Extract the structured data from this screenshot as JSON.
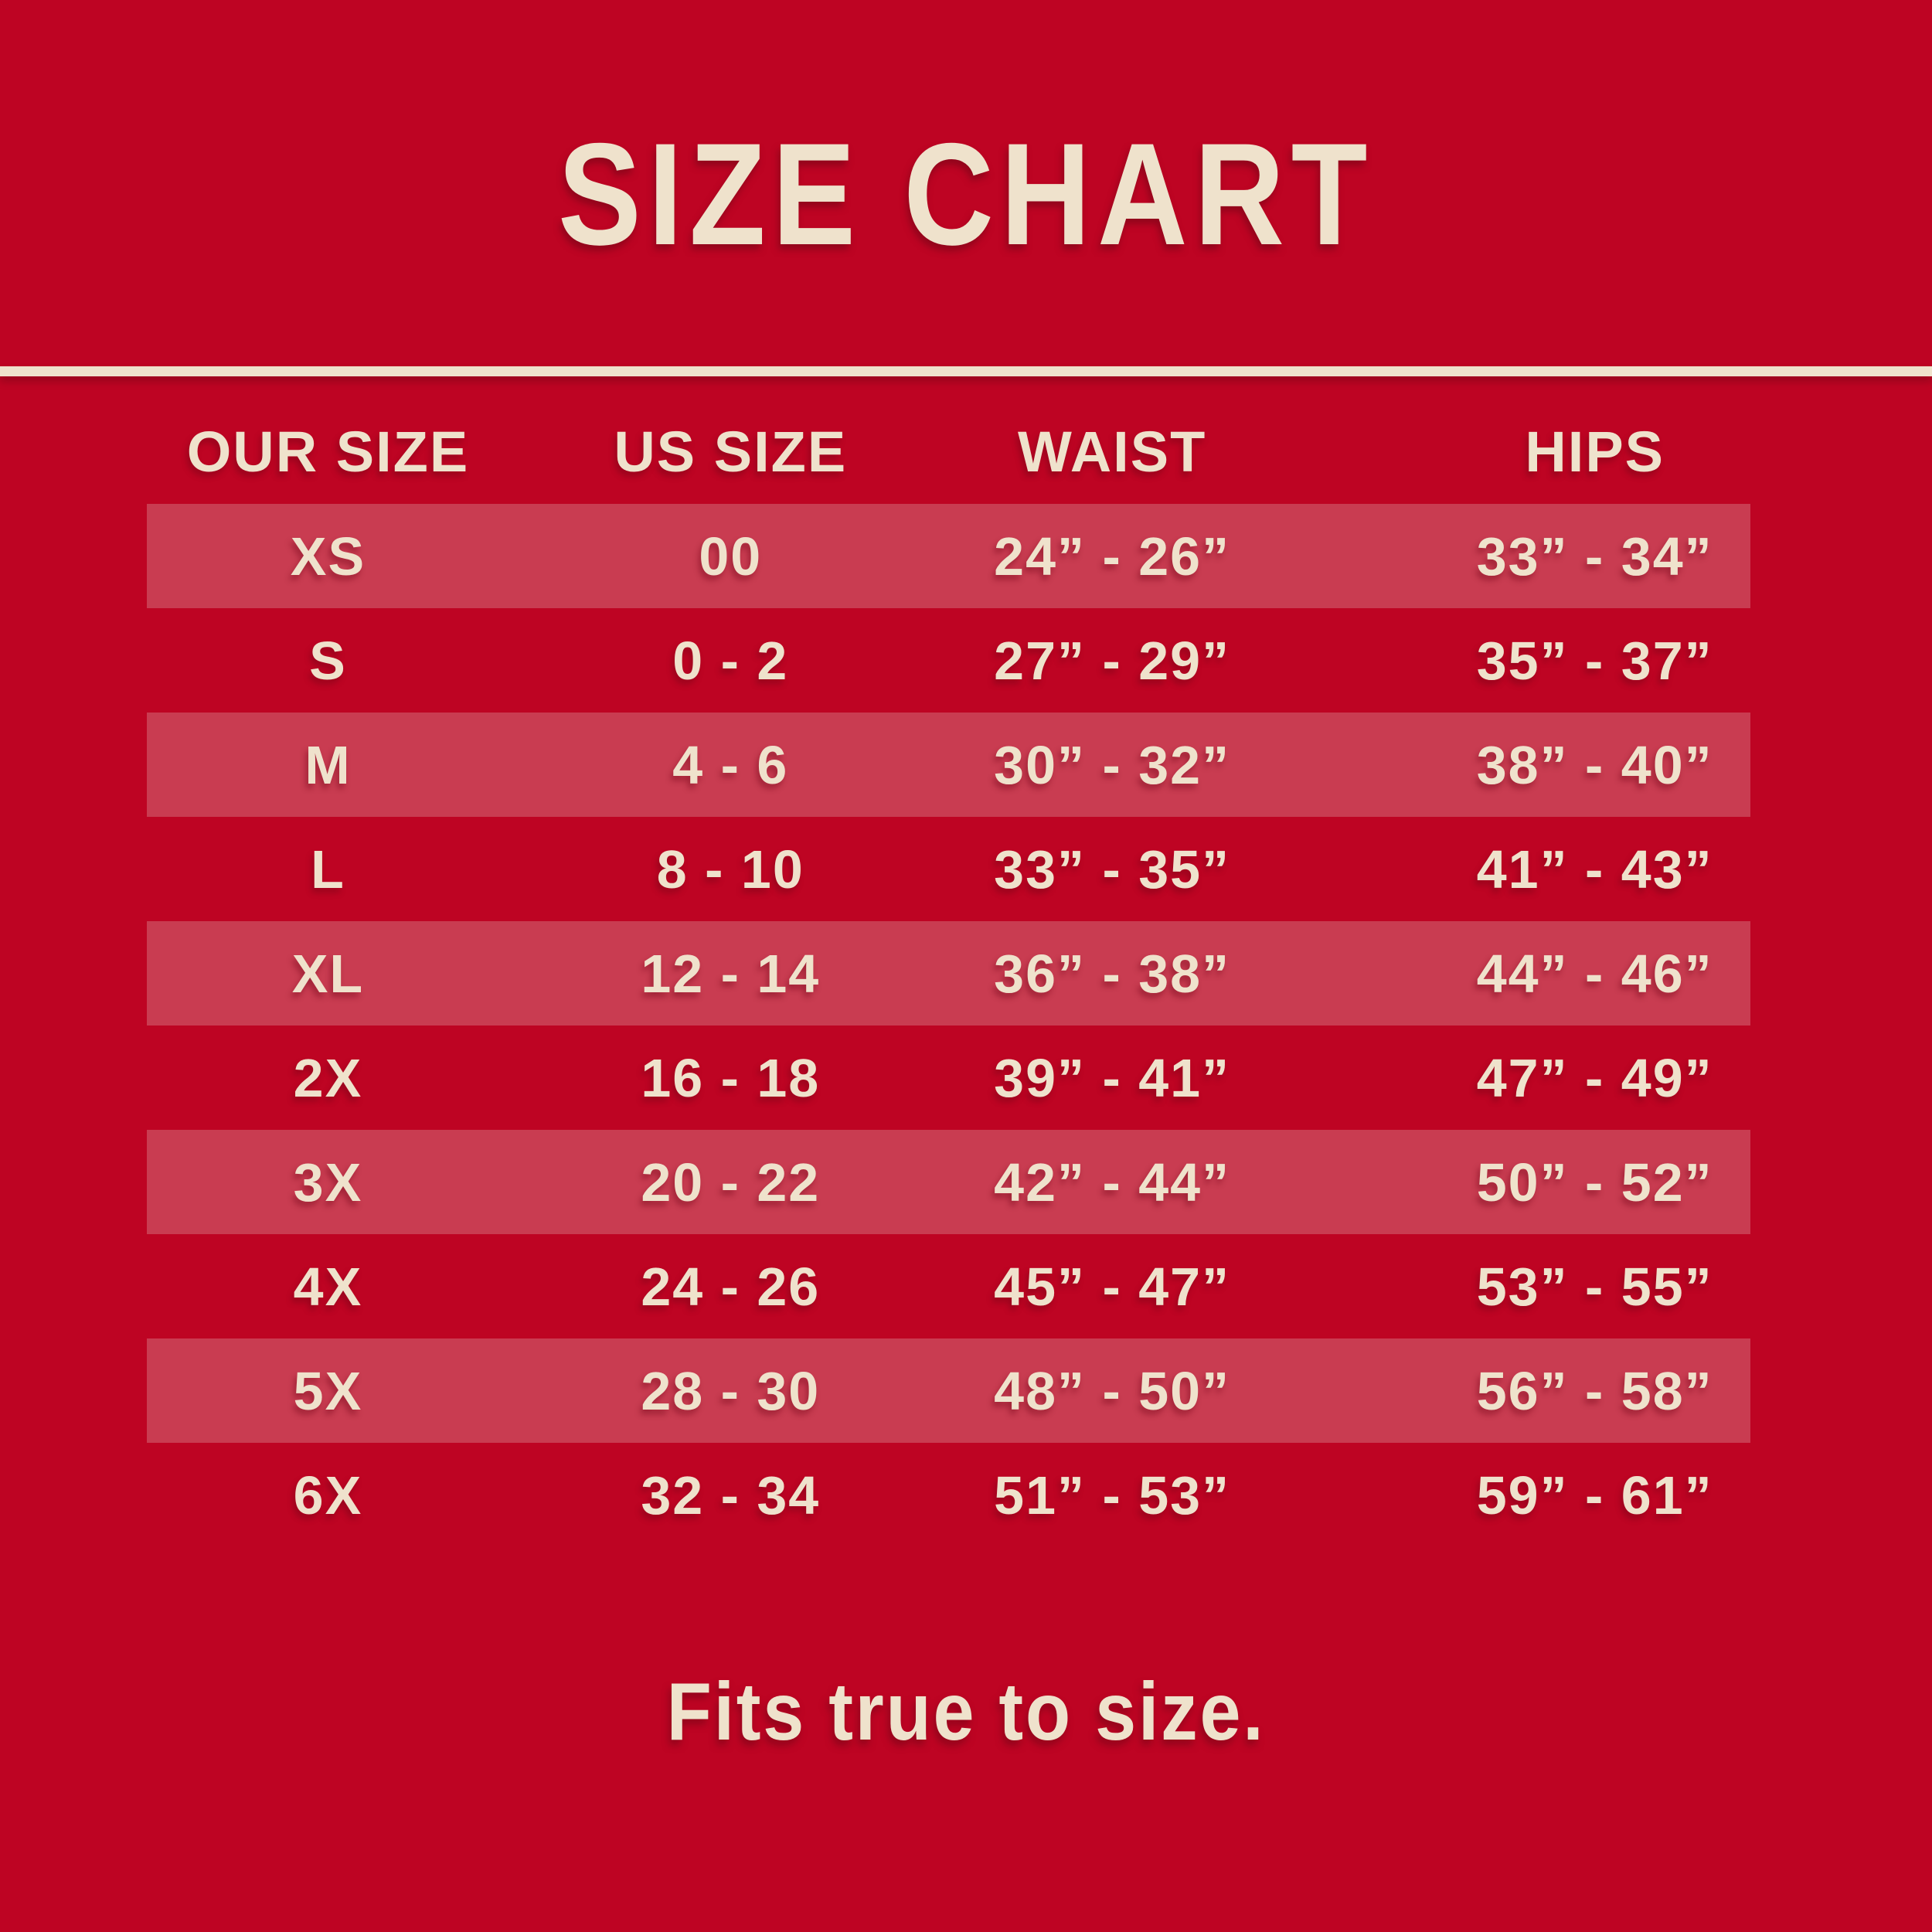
{
  "colors": {
    "background": "#be0423",
    "stripe": "#c93c51",
    "text": "#efe2cc"
  },
  "title": "SIZE CHART",
  "footer_note": "Fits true to size.",
  "table": {
    "headers": [
      "OUR SIZE",
      "US SIZE",
      "WAIST",
      "HIPS"
    ],
    "rows": [
      {
        "our_size": "XS",
        "us_size": "00",
        "waist": "24” - 26”",
        "hips": "33” - 34”",
        "striped": true
      },
      {
        "our_size": "S",
        "us_size": "0 - 2",
        "waist": "27” - 29”",
        "hips": "35” - 37”",
        "striped": false
      },
      {
        "our_size": "M",
        "us_size": "4 - 6",
        "waist": "30” - 32”",
        "hips": "38” - 40”",
        "striped": true
      },
      {
        "our_size": "L",
        "us_size": "8 - 10",
        "waist": "33” - 35”",
        "hips": "41” - 43”",
        "striped": false
      },
      {
        "our_size": "XL",
        "us_size": "12 - 14",
        "waist": "36” - 38”",
        "hips": "44” - 46”",
        "striped": true
      },
      {
        "our_size": "2X",
        "us_size": "16 - 18",
        "waist": "39” - 41”",
        "hips": "47” - 49”",
        "striped": false
      },
      {
        "our_size": "3X",
        "us_size": "20 - 22",
        "waist": "42” - 44”",
        "hips": "50” - 52”",
        "striped": true
      },
      {
        "our_size": "4X",
        "us_size": "24 - 26",
        "waist": "45” - 47”",
        "hips": "53” - 55”",
        "striped": false
      },
      {
        "our_size": "5X",
        "us_size": "28 - 30",
        "waist": "48” - 50”",
        "hips": "56” - 58”",
        "striped": true
      },
      {
        "our_size": "6X",
        "us_size": "32 - 34",
        "waist": "51” - 53”",
        "hips": "59” - 61”",
        "striped": false
      }
    ]
  },
  "chart_data": {
    "type": "table",
    "title": "SIZE CHART",
    "columns": [
      "OUR SIZE",
      "US SIZE",
      "WAIST",
      "HIPS"
    ],
    "rows": [
      [
        "XS",
        "00",
        "24” - 26”",
        "33” - 34”"
      ],
      [
        "S",
        "0 - 2",
        "27” - 29”",
        "35” - 37”"
      ],
      [
        "M",
        "4 - 6",
        "30” - 32”",
        "38” - 40”"
      ],
      [
        "L",
        "8 - 10",
        "33” - 35”",
        "41” - 43”"
      ],
      [
        "XL",
        "12 - 14",
        "36” - 38”",
        "44” - 46”"
      ],
      [
        "2X",
        "16 - 18",
        "39” - 41”",
        "47” - 49”"
      ],
      [
        "3X",
        "20 - 22",
        "42” - 44”",
        "50” - 52”"
      ],
      [
        "4X",
        "24 - 26",
        "45” - 47”",
        "53” - 55”"
      ],
      [
        "5X",
        "28 - 30",
        "48” - 50”",
        "56” - 58”"
      ],
      [
        "6X",
        "32 - 34",
        "51” - 53”",
        "59” - 61”"
      ]
    ],
    "striped_row_indices": [
      0,
      2,
      4,
      6,
      8
    ],
    "note": "Fits true to size.",
    "layout": {
      "grid": false,
      "header_position": "top",
      "stripe_style": "alternating lighter red bands"
    }
  }
}
